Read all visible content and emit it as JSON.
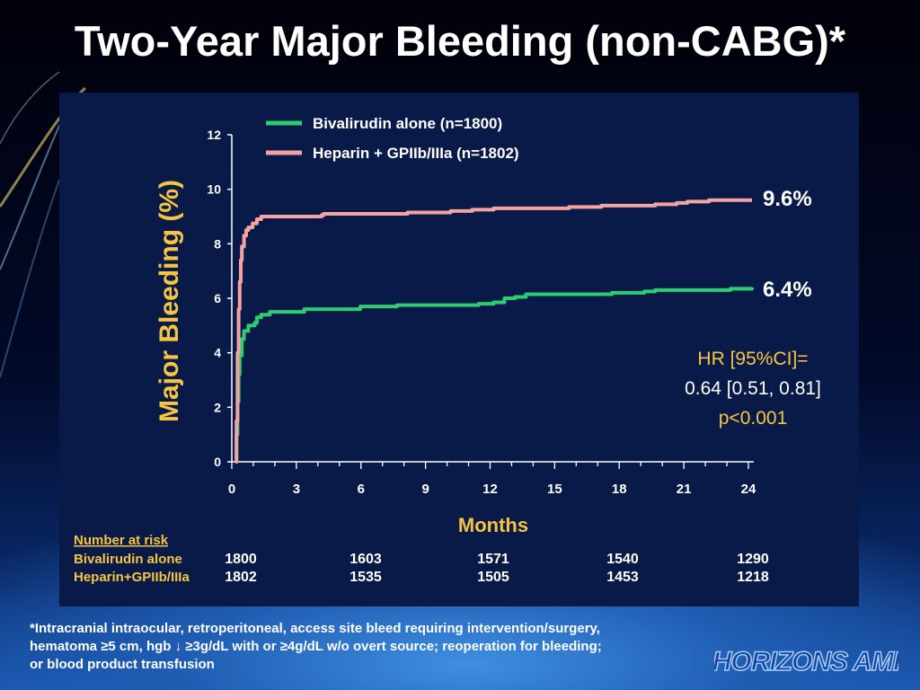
{
  "title": "Two-Year Major Bleeding (non-CABG)*",
  "colors": {
    "bivalirudin": "#2ecc71",
    "heparin": "#f4a3a3",
    "yellow_text": "#f5c542",
    "panel": "#0a1a48"
  },
  "chart_data": {
    "type": "line",
    "ylabel": "Major Bleeding (%)",
    "xlabel": "Months",
    "ylim": [
      0,
      12
    ],
    "xlim": [
      0,
      24
    ],
    "yticks": [
      "0",
      "2",
      "4",
      "6",
      "8",
      "10",
      "12"
    ],
    "xticks": [
      "0",
      "3",
      "6",
      "9",
      "12",
      "15",
      "18",
      "21",
      "24"
    ],
    "legend_placement": "top-left",
    "series": [
      {
        "name": "Bivalirudin alone (n=1800)",
        "end_label": "6.4%",
        "points": [
          [
            0,
            0
          ],
          [
            0.05,
            1.0
          ],
          [
            0.1,
            2.2
          ],
          [
            0.15,
            3.2
          ],
          [
            0.2,
            3.9
          ],
          [
            0.3,
            4.5
          ],
          [
            0.4,
            4.8
          ],
          [
            0.6,
            5.0
          ],
          [
            0.9,
            5.1
          ],
          [
            1.0,
            5.3
          ],
          [
            1.2,
            5.4
          ],
          [
            1.6,
            5.5
          ],
          [
            3,
            5.5
          ],
          [
            3.2,
            5.6
          ],
          [
            5.5,
            5.6
          ],
          [
            5.8,
            5.7
          ],
          [
            6.5,
            5.7
          ],
          [
            7.5,
            5.75
          ],
          [
            11,
            5.75
          ],
          [
            11.3,
            5.8
          ],
          [
            12,
            5.85
          ],
          [
            12.5,
            6.0
          ],
          [
            13,
            6.05
          ],
          [
            13.5,
            6.15
          ],
          [
            17,
            6.15
          ],
          [
            17.5,
            6.2
          ],
          [
            19,
            6.25
          ],
          [
            19.5,
            6.3
          ],
          [
            23,
            6.35
          ],
          [
            24,
            6.4
          ]
        ]
      },
      {
        "name": "Heparin + GPIIb/IIIa (n=1802)",
        "end_label": "9.6%",
        "points": [
          [
            0,
            0
          ],
          [
            0.05,
            1.5
          ],
          [
            0.1,
            4.0
          ],
          [
            0.15,
            5.6
          ],
          [
            0.2,
            6.6
          ],
          [
            0.25,
            7.4
          ],
          [
            0.3,
            7.9
          ],
          [
            0.4,
            8.3
          ],
          [
            0.5,
            8.5
          ],
          [
            0.6,
            8.6
          ],
          [
            0.8,
            8.75
          ],
          [
            1.0,
            8.9
          ],
          [
            1.2,
            9.0
          ],
          [
            3,
            9.0
          ],
          [
            4,
            9.05
          ],
          [
            4.1,
            9.1
          ],
          [
            8,
            9.15
          ],
          [
            10,
            9.2
          ],
          [
            11,
            9.25
          ],
          [
            12,
            9.3
          ],
          [
            15,
            9.3
          ],
          [
            15.5,
            9.35
          ],
          [
            17,
            9.4
          ],
          [
            18,
            9.4
          ],
          [
            19.5,
            9.45
          ],
          [
            20.5,
            9.5
          ],
          [
            21,
            9.55
          ],
          [
            22,
            9.6
          ],
          [
            24,
            9.6
          ]
        ]
      }
    ],
    "annotation": {
      "line1": "HR [95%CI]=",
      "line2": "0.64 [0.51, 0.81]",
      "line3": "p<0.001"
    },
    "risk_table": {
      "header": "Number at risk",
      "rows": [
        {
          "label": "Bivalirudin alone",
          "values": [
            "1800",
            "1603",
            "1571",
            "1540",
            "1290"
          ]
        },
        {
          "label": "Heparin+GPIIb/IIIa",
          "values": [
            "1802",
            "1535",
            "1505",
            "1453",
            "1218"
          ]
        }
      ]
    }
  },
  "footnote": {
    "line1": "*Intracranial intraocular, retroperitoneal, access site bleed requiring intervention/surgery,",
    "line2": "hematoma ≥5 cm, hgb ↓ ≥3g/dL with or ≥4g/dL w/o overt source; reoperation for bleeding;",
    "line3": "or blood product transfusion"
  },
  "logo": {
    "text": "HORIZONS AMI"
  }
}
